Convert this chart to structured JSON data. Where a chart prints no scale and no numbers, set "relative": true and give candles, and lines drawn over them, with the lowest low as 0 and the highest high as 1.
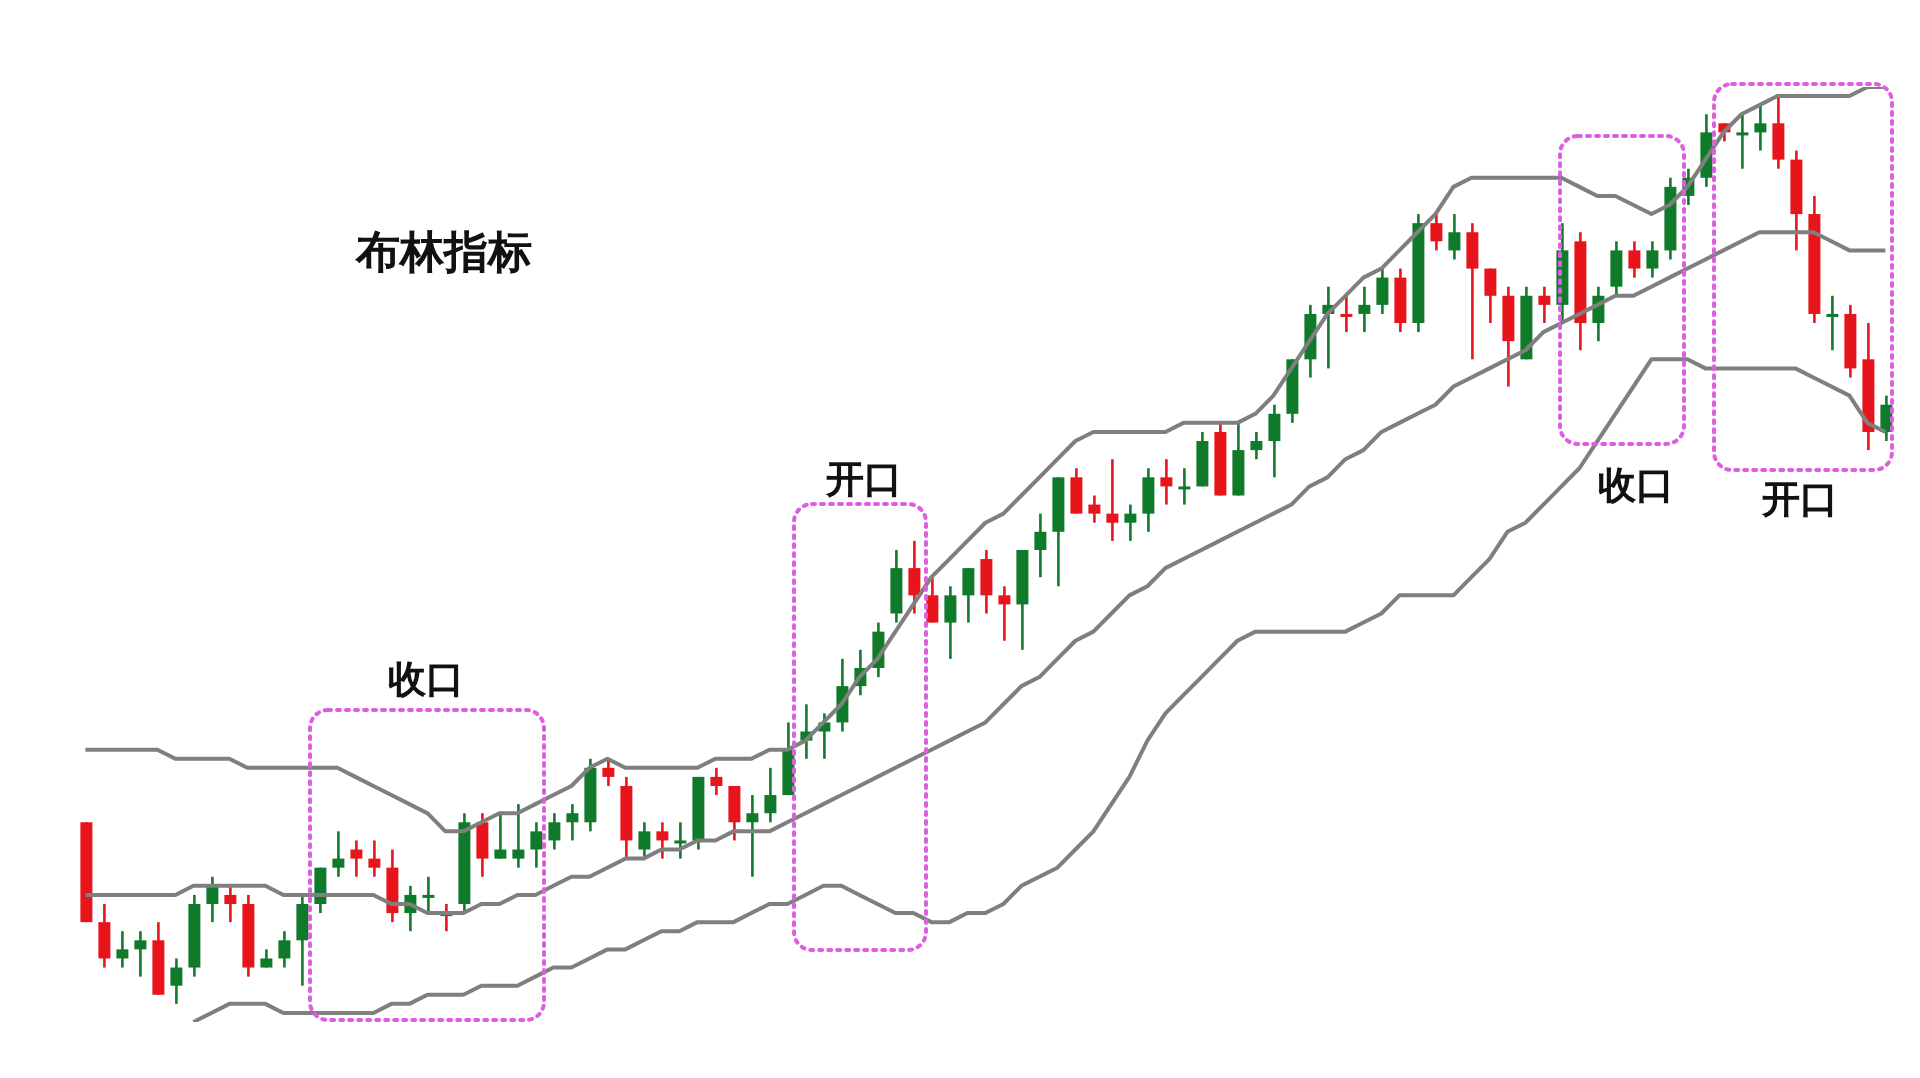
{
  "chart_data": {
    "type": "candlestick",
    "title": "布林指标",
    "relative": true,
    "categories": [
      null,
      null,
      null,
      null,
      null,
      null,
      null,
      null,
      null,
      null,
      null,
      null,
      null,
      null,
      null,
      null,
      null,
      null,
      null,
      null,
      null,
      null,
      null,
      null,
      null,
      null,
      null,
      null,
      null,
      null,
      null,
      null,
      null,
      null,
      null,
      null,
      null,
      null,
      null,
      null,
      null,
      null,
      null,
      null,
      null,
      null,
      null,
      null,
      null,
      null,
      null,
      null,
      null,
      null,
      null,
      null,
      null,
      null,
      null,
      null,
      null,
      null,
      null,
      null,
      null,
      null,
      null,
      null,
      null,
      null,
      null,
      null,
      null,
      null,
      null,
      null,
      null,
      null,
      null,
      null,
      null,
      null,
      null,
      null,
      null,
      null,
      null,
      null,
      null,
      null,
      null,
      null,
      null,
      null,
      null,
      null,
      null,
      null,
      null,
      null,
      null
    ],
    "ohlc": [
      [
        0.2,
        0.2,
        0.09,
        0.09
      ],
      [
        0.09,
        0.11,
        0.04,
        0.05
      ],
      [
        0.05,
        0.08,
        0.04,
        0.06
      ],
      [
        0.06,
        0.08,
        0.03,
        0.07
      ],
      [
        0.07,
        0.09,
        0.01,
        0.01
      ],
      [
        0.02,
        0.05,
        0,
        0.04
      ],
      [
        0.04,
        0.12,
        0.03,
        0.11
      ],
      [
        0.11,
        0.14,
        0.09,
        0.13
      ],
      [
        0.12,
        0.13,
        0.09,
        0.11
      ],
      [
        0.11,
        0.12,
        0.03,
        0.04
      ],
      [
        0.04,
        0.06,
        0.04,
        0.05
      ],
      [
        0.05,
        0.08,
        0.04,
        0.07
      ],
      [
        0.07,
        0.12,
        0.02,
        0.11
      ],
      [
        0.11,
        0.15,
        0.1,
        0.15
      ],
      [
        0.15,
        0.19,
        0.14,
        0.16
      ],
      [
        0.17,
        0.18,
        0.14,
        0.16
      ],
      [
        0.16,
        0.18,
        0.14,
        0.15
      ],
      [
        0.15,
        0.17,
        0.09,
        0.1
      ],
      [
        0.1,
        0.13,
        0.08,
        0.12
      ],
      [
        0.12,
        0.14,
        0.1,
        0.12
      ],
      [
        0.1,
        0.11,
        0.08,
        0.1
      ],
      [
        0.11,
        0.21,
        0.1,
        0.2
      ],
      [
        0.2,
        0.21,
        0.14,
        0.16
      ],
      [
        0.16,
        0.21,
        0.16,
        0.17
      ],
      [
        0.16,
        0.22,
        0.15,
        0.17
      ],
      [
        0.17,
        0.2,
        0.15,
        0.19
      ],
      [
        0.18,
        0.21,
        0.17,
        0.2
      ],
      [
        0.2,
        0.22,
        0.18,
        0.21
      ],
      [
        0.2,
        0.27,
        0.19,
        0.26
      ],
      [
        0.26,
        0.27,
        0.24,
        0.25
      ],
      [
        0.24,
        0.25,
        0.16,
        0.18
      ],
      [
        0.17,
        0.2,
        0.16,
        0.19
      ],
      [
        0.19,
        0.2,
        0.16,
        0.18
      ],
      [
        0.18,
        0.2,
        0.16,
        0.18
      ],
      [
        0.18,
        0.25,
        0.17,
        0.25
      ],
      [
        0.25,
        0.26,
        0.23,
        0.24
      ],
      [
        0.24,
        0.24,
        0.18,
        0.2
      ],
      [
        0.2,
        0.23,
        0.14,
        0.21
      ],
      [
        0.21,
        0.26,
        0.2,
        0.23
      ],
      [
        0.23,
        0.31,
        0.23,
        0.28
      ],
      [
        0.29,
        0.33,
        0.27,
        0.3
      ],
      [
        0.3,
        0.32,
        0.27,
        0.31
      ],
      [
        0.31,
        0.38,
        0.3,
        0.35
      ],
      [
        0.35,
        0.39,
        0.34,
        0.37
      ],
      [
        0.37,
        0.42,
        0.36,
        0.41
      ],
      [
        0.43,
        0.5,
        0.42,
        0.48
      ],
      [
        0.48,
        0.51,
        0.43,
        0.45
      ],
      [
        0.45,
        0.47,
        0.42,
        0.42
      ],
      [
        0.42,
        0.46,
        0.38,
        0.45
      ],
      [
        0.45,
        0.48,
        0.42,
        0.48
      ],
      [
        0.49,
        0.5,
        0.43,
        0.45
      ],
      [
        0.45,
        0.46,
        0.4,
        0.44
      ],
      [
        0.44,
        0.5,
        0.39,
        0.5
      ],
      [
        0.5,
        0.54,
        0.47,
        0.52
      ],
      [
        0.52,
        0.58,
        0.46,
        0.58
      ],
      [
        0.58,
        0.59,
        0.54,
        0.54
      ],
      [
        0.55,
        0.56,
        0.53,
        0.54
      ],
      [
        0.54,
        0.6,
        0.51,
        0.53
      ],
      [
        0.53,
        0.55,
        0.51,
        0.54
      ],
      [
        0.54,
        0.59,
        0.52,
        0.58
      ],
      [
        0.58,
        0.6,
        0.55,
        0.57
      ],
      [
        0.57,
        0.59,
        0.55,
        0.57
      ],
      [
        0.57,
        0.63,
        0.57,
        0.62
      ],
      [
        0.63,
        0.64,
        0.56,
        0.56
      ],
      [
        0.56,
        0.64,
        0.56,
        0.61
      ],
      [
        0.61,
        0.63,
        0.6,
        0.62
      ],
      [
        0.62,
        0.66,
        0.58,
        0.65
      ],
      [
        0.65,
        0.71,
        0.64,
        0.71
      ],
      [
        0.71,
        0.77,
        0.69,
        0.76
      ],
      [
        0.76,
        0.79,
        0.7,
        0.77
      ],
      [
        0.76,
        0.78,
        0.74,
        0.76
      ],
      [
        0.76,
        0.79,
        0.74,
        0.77
      ],
      [
        0.77,
        0.81,
        0.76,
        0.8
      ],
      [
        0.8,
        0.81,
        0.74,
        0.75
      ],
      [
        0.75,
        0.87,
        0.74,
        0.86
      ],
      [
        0.86,
        0.87,
        0.83,
        0.84
      ],
      [
        0.83,
        0.87,
        0.82,
        0.85
      ],
      [
        0.85,
        0.86,
        0.71,
        0.81
      ],
      [
        0.81,
        0.81,
        0.75,
        0.78
      ],
      [
        0.78,
        0.79,
        0.68,
        0.73
      ],
      [
        0.71,
        0.79,
        0.71,
        0.78
      ],
      [
        0.78,
        0.79,
        0.75,
        0.77
      ],
      [
        0.77,
        0.86,
        0.75,
        0.83
      ],
      [
        0.84,
        0.85,
        0.72,
        0.75
      ],
      [
        0.75,
        0.79,
        0.73,
        0.78
      ],
      [
        0.79,
        0.84,
        0.78,
        0.83
      ],
      [
        0.83,
        0.84,
        0.8,
        0.81
      ],
      [
        0.81,
        0.84,
        0.8,
        0.83
      ],
      [
        0.83,
        0.91,
        0.82,
        0.9
      ],
      [
        0.89,
        0.92,
        0.88,
        0.91
      ],
      [
        0.91,
        0.98,
        0.9,
        0.96
      ],
      [
        0.97,
        0.97,
        0.95,
        0.96
      ],
      [
        0.96,
        0.98,
        0.92,
        0.96
      ],
      [
        0.96,
        0.99,
        0.94,
        0.97
      ],
      [
        0.97,
        1,
        0.92,
        0.93
      ],
      [
        0.93,
        0.94,
        0.83,
        0.87
      ],
      [
        0.87,
        0.89,
        0.75,
        0.76
      ],
      [
        0.76,
        0.78,
        0.72,
        0.76
      ],
      [
        0.76,
        0.77,
        0.69,
        0.7
      ],
      [
        0.71,
        0.75,
        0.61,
        0.63
      ],
      [
        0.63,
        0.67,
        0.62,
        0.66
      ]
    ],
    "colors": [
      "#e8141c",
      "#e8141c",
      "#0f7a2a",
      "#0f7a2a",
      "#e8141c",
      "#0f7a2a",
      "#0f7a2a",
      "#0f7a2a",
      "#e8141c",
      "#e8141c",
      "#0f7a2a",
      "#0f7a2a",
      "#0f7a2a",
      "#0f7a2a",
      "#0f7a2a",
      "#e8141c",
      "#e8141c",
      "#e8141c",
      "#0f7a2a",
      "#0f7a2a",
      "#e8141c",
      "#0f7a2a",
      "#e8141c",
      "#0f7a2a",
      "#0f7a2a",
      "#0f7a2a",
      "#0f7a2a",
      "#0f7a2a",
      "#0f7a2a",
      "#e8141c",
      "#e8141c",
      "#0f7a2a",
      "#e8141c",
      "#0f7a2a",
      "#0f7a2a",
      "#e8141c",
      "#e8141c",
      "#0f7a2a",
      "#0f7a2a",
      "#0f7a2a",
      "#0f7a2a",
      "#0f7a2a",
      "#0f7a2a",
      "#0f7a2a",
      "#0f7a2a",
      "#0f7a2a",
      "#e8141c",
      "#e8141c",
      "#0f7a2a",
      "#0f7a2a",
      "#e8141c",
      "#e8141c",
      "#0f7a2a",
      "#0f7a2a",
      "#0f7a2a",
      "#e8141c",
      "#e8141c",
      "#e8141c",
      "#0f7a2a",
      "#0f7a2a",
      "#e8141c",
      "#0f7a2a",
      "#0f7a2a",
      "#e8141c",
      "#0f7a2a",
      "#0f7a2a",
      "#0f7a2a",
      "#0f7a2a",
      "#0f7a2a",
      "#0f7a2a",
      "#e8141c",
      "#0f7a2a",
      "#0f7a2a",
      "#e8141c",
      "#0f7a2a",
      "#e8141c",
      "#0f7a2a",
      "#e8141c",
      "#e8141c",
      "#e8141c",
      "#0f7a2a",
      "#e8141c",
      "#0f7a2a",
      "#e8141c",
      "#0f7a2a",
      "#0f7a2a",
      "#e8141c",
      "#0f7a2a",
      "#0f7a2a",
      "#0f7a2a",
      "#0f7a2a",
      "#e8141c",
      "#0f7a2a",
      "#0f7a2a",
      "#e8141c",
      "#e8141c",
      "#e8141c",
      "#0f7a2a",
      "#e8141c",
      "#e8141c",
      "#0f7a2a"
    ],
    "series": [
      {
        "type": "line",
        "color": "#7f7f7f",
        "values": [
          0.28,
          0.28,
          0.28,
          0.28,
          0.28,
          0.27,
          0.27,
          0.27,
          0.27,
          0.26,
          0.26,
          0.26,
          0.26,
          0.26,
          0.26,
          0.25,
          0.24,
          0.23,
          0.22,
          0.21,
          0.19,
          0.19,
          0.2,
          0.21,
          0.21,
          0.22,
          0.23,
          0.24,
          0.26,
          0.27,
          0.26,
          0.26,
          0.26,
          0.26,
          0.26,
          0.27,
          0.27,
          0.27,
          0.28,
          0.28,
          0.29,
          0.31,
          0.33,
          0.36,
          0.38,
          0.41,
          0.44,
          0.47,
          0.49,
          0.51,
          0.53,
          0.54,
          0.56,
          0.58,
          0.6,
          0.62,
          0.63,
          0.63,
          0.63,
          0.63,
          0.63,
          0.64,
          0.64,
          0.64,
          0.64,
          0.65,
          0.67,
          0.7,
          0.73,
          0.76,
          0.78,
          0.8,
          0.81,
          0.83,
          0.85,
          0.87,
          0.9,
          0.91,
          0.91,
          0.91,
          0.91,
          0.91,
          0.91,
          0.9,
          0.89,
          0.89,
          0.88,
          0.87,
          0.88,
          0.9,
          0.93,
          0.96,
          0.98,
          0.99,
          1.0,
          1.0,
          1.0,
          1.0,
          1.0,
          1.01,
          1.01
        ]
      },
      {
        "type": "line",
        "color": "#7f7f7f",
        "values": [
          0.12,
          0.12,
          0.12,
          0.12,
          0.12,
          0.12,
          0.13,
          0.13,
          0.13,
          0.13,
          0.13,
          0.12,
          0.12,
          0.12,
          0.12,
          0.12,
          0.12,
          0.11,
          0.11,
          0.1,
          0.1,
          0.1,
          0.11,
          0.11,
          0.12,
          0.12,
          0.13,
          0.14,
          0.14,
          0.15,
          0.16,
          0.16,
          0.17,
          0.17,
          0.18,
          0.18,
          0.19,
          0.19,
          0.19,
          0.2,
          0.21,
          0.22,
          0.23,
          0.24,
          0.25,
          0.26,
          0.27,
          0.28,
          0.29,
          0.3,
          0.31,
          0.33,
          0.35,
          0.36,
          0.38,
          0.4,
          0.41,
          0.43,
          0.45,
          0.46,
          0.48,
          0.49,
          0.5,
          0.51,
          0.52,
          0.53,
          0.54,
          0.55,
          0.57,
          0.58,
          0.6,
          0.61,
          0.63,
          0.64,
          0.65,
          0.66,
          0.68,
          0.69,
          0.7,
          0.71,
          0.72,
          0.74,
          0.75,
          0.76,
          0.77,
          0.78,
          0.78,
          0.79,
          0.8,
          0.81,
          0.82,
          0.83,
          0.84,
          0.85,
          0.85,
          0.85,
          0.85,
          0.84,
          0.83,
          0.83,
          0.83
        ]
      },
      {
        "type": "line",
        "color": "#7f7f7f",
        "values": [
          null,
          null,
          null,
          null,
          null,
          null,
          -0.02,
          -0.01,
          0,
          0,
          0,
          -0.01,
          -0.01,
          -0.01,
          -0.01,
          -0.01,
          -0.01,
          0,
          0,
          0.01,
          0.01,
          0.01,
          0.02,
          0.02,
          0.02,
          0.03,
          0.04,
          0.04,
          0.05,
          0.06,
          0.06,
          0.07,
          0.08,
          0.08,
          0.09,
          0.09,
          0.09,
          0.1,
          0.11,
          0.11,
          0.12,
          0.13,
          0.13,
          0.12,
          0.11,
          0.1,
          0.1,
          0.09,
          0.09,
          0.1,
          0.1,
          0.11,
          0.13,
          0.14,
          0.15,
          0.17,
          0.19,
          0.22,
          0.25,
          0.29,
          0.32,
          0.34,
          0.36,
          0.38,
          0.4,
          0.41,
          0.41,
          0.41,
          0.41,
          0.41,
          0.41,
          0.42,
          0.43,
          0.45,
          0.45,
          0.45,
          0.45,
          0.47,
          0.49,
          0.52,
          0.53,
          0.55,
          0.57,
          0.59,
          0.62,
          0.65,
          0.68,
          0.71,
          0.71,
          0.71,
          0.7,
          0.7,
          0.7,
          0.7,
          0.7,
          0.7,
          0.69,
          0.68,
          0.67,
          0.64,
          0.63
        ]
      }
    ],
    "annotations": [
      "收口",
      "开口",
      "收口",
      "开口"
    ]
  }
}
